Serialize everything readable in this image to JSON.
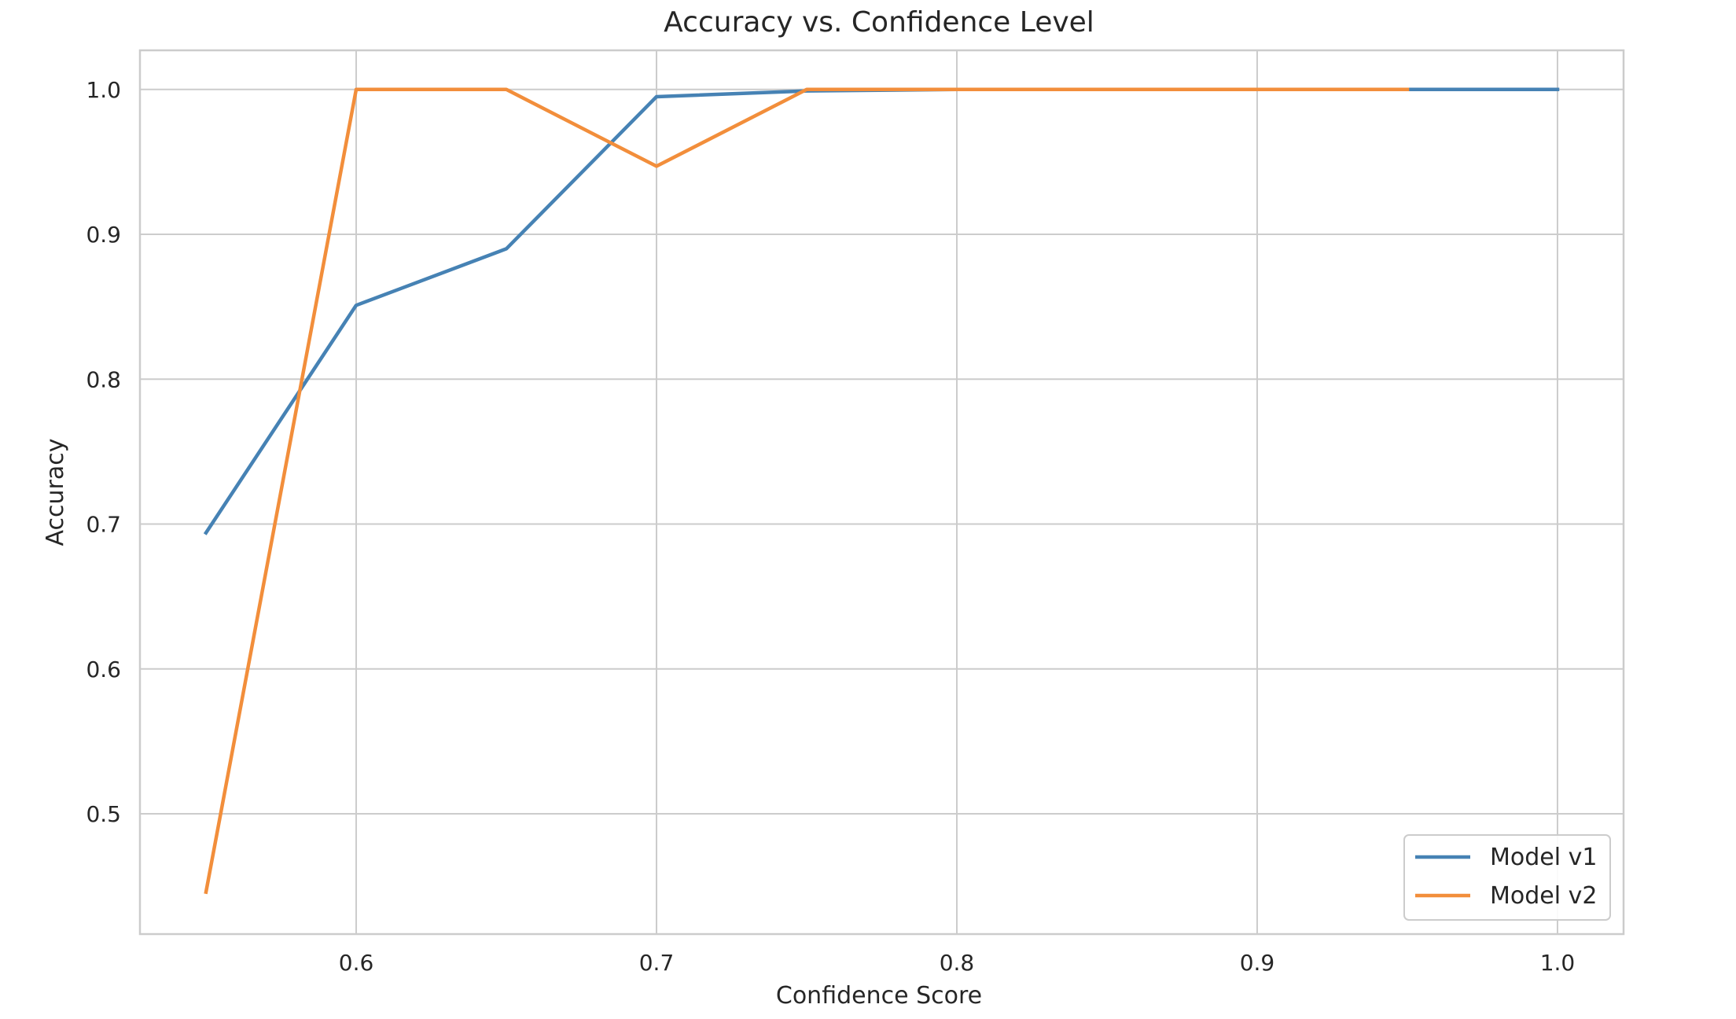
{
  "chart_data": {
    "type": "line",
    "title": "Accuracy vs. Confidence Level",
    "xlabel": "Confidence Score",
    "ylabel": "Accuracy",
    "xlim": [
      0.528,
      1.022
    ],
    "ylim": [
      0.417,
      1.027
    ],
    "xticks": [
      "0.6",
      "0.7",
      "0.8",
      "0.9",
      "1.0"
    ],
    "yticks": [
      "0.5",
      "0.6",
      "0.7",
      "0.8",
      "0.9",
      "1.0"
    ],
    "grid": true,
    "legend_position": "lower-right",
    "series": [
      {
        "name": "Model v1",
        "color": "#4682b4",
        "x": [
          0.55,
          0.6,
          0.65,
          0.7,
          0.75,
          0.8,
          0.85,
          0.9,
          0.95,
          1.0
        ],
        "y": [
          0.694,
          0.851,
          0.89,
          0.995,
          0.999,
          1.0,
          1.0,
          1.0,
          1.0,
          1.0
        ]
      },
      {
        "name": "Model v2",
        "color": "#f28e3b",
        "x": [
          0.55,
          0.6,
          0.65,
          0.7,
          0.75,
          0.8,
          0.85,
          0.9,
          0.95
        ],
        "y": [
          0.446,
          1.0,
          1.0,
          0.947,
          1.0,
          1.0,
          1.0,
          1.0,
          1.0
        ]
      }
    ]
  }
}
